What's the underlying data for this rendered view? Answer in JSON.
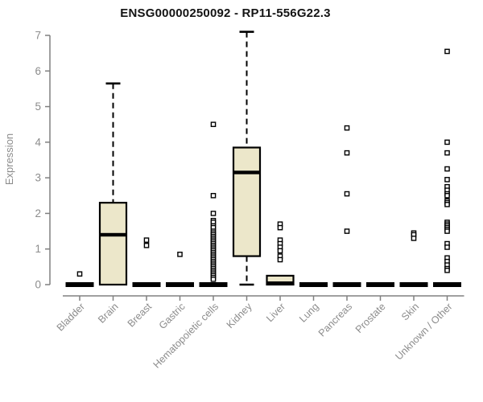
{
  "figure": {
    "title": "ENSG00000250092 - RP11-556G22.3",
    "ylabel": "Expression"
  },
  "chart_data": {
    "type": "boxplot",
    "title": "ENSG00000250092 - RP11-556G22.3",
    "xlabel": "",
    "ylabel": "Expression",
    "ylim": [
      0,
      7.2
    ],
    "yticks": [
      0,
      1,
      2,
      3,
      4,
      5,
      6,
      7
    ],
    "grid": false,
    "legend": false,
    "categories": [
      "Bladder",
      "Brain",
      "Breast",
      "Gastric",
      "Hematopoietic cells",
      "Kidney",
      "Liver",
      "Lung",
      "Pancreas",
      "Prostate",
      "Skin",
      "Unknown / Other"
    ],
    "series": [
      {
        "name": "Bladder",
        "q1": 0,
        "median": 0,
        "q3": 0,
        "whisker_low": 0,
        "whisker_high": 0,
        "outliers": [
          0.3
        ]
      },
      {
        "name": "Brain",
        "q1": 0,
        "median": 1.4,
        "q3": 2.3,
        "whisker_low": 0,
        "whisker_high": 5.65,
        "outliers": []
      },
      {
        "name": "Breast",
        "q1": 0,
        "median": 0,
        "q3": 0,
        "whisker_low": 0,
        "whisker_high": 0,
        "outliers": [
          1.25,
          1.1
        ]
      },
      {
        "name": "Gastric",
        "q1": 0,
        "median": 0,
        "q3": 0,
        "whisker_low": 0,
        "whisker_high": 0,
        "outliers": [
          0.85
        ]
      },
      {
        "name": "Hematopoietic cells",
        "q1": 0,
        "median": 0,
        "q3": 0,
        "whisker_low": 0,
        "whisker_high": 0,
        "outliers": [
          4.5,
          2.5,
          2.0,
          1.8,
          1.75,
          1.65,
          1.6,
          1.5,
          1.45,
          1.4,
          1.35,
          1.3,
          1.25,
          1.2,
          1.15,
          1.1,
          1.05,
          1.0,
          0.95,
          0.9,
          0.85,
          0.8,
          0.75,
          0.7,
          0.65,
          0.6,
          0.55,
          0.5,
          0.45,
          0.4,
          0.35,
          0.3,
          0.25,
          0.2,
          0.15
        ]
      },
      {
        "name": "Kidney",
        "q1": 0.8,
        "median": 3.15,
        "q3": 3.85,
        "whisker_low": 0,
        "whisker_high": 7.1,
        "outliers": []
      },
      {
        "name": "Liver",
        "q1": 0,
        "median": 0.04,
        "q3": 0.25,
        "whisker_low": 0,
        "whisker_high": 0.25,
        "outliers": [
          1.7,
          1.6,
          1.25,
          1.15,
          1.05,
          0.95,
          0.8,
          0.7
        ]
      },
      {
        "name": "Lung",
        "q1": 0,
        "median": 0,
        "q3": 0,
        "whisker_low": 0,
        "whisker_high": 0,
        "outliers": []
      },
      {
        "name": "Pancreas",
        "q1": 0,
        "median": 0,
        "q3": 0,
        "whisker_low": 0,
        "whisker_high": 0,
        "outliers": [
          4.4,
          3.7,
          2.55,
          1.5
        ]
      },
      {
        "name": "Prostate",
        "q1": 0,
        "median": 0,
        "q3": 0,
        "whisker_low": 0,
        "whisker_high": 0,
        "outliers": []
      },
      {
        "name": "Skin",
        "q1": 0,
        "median": 0,
        "q3": 0,
        "whisker_low": 0,
        "whisker_high": 0,
        "outliers": [
          1.45,
          1.4,
          1.3
        ]
      },
      {
        "name": "Unknown / Other",
        "q1": 0,
        "median": 0,
        "q3": 0,
        "whisker_low": 0,
        "whisker_high": 0,
        "outliers": [
          6.55,
          4.0,
          3.7,
          3.25,
          2.95,
          2.75,
          2.65,
          2.55,
          2.5,
          2.35,
          2.3,
          2.25,
          1.75,
          1.7,
          1.65,
          1.6,
          1.55,
          1.5,
          1.15,
          1.05,
          0.75,
          0.65,
          0.55,
          0.45,
          0.4
        ]
      }
    ],
    "colors": {
      "box_fill": "#ECE7CA",
      "box_stroke": "#000000",
      "median": "#000000",
      "whisker": "#000000",
      "outlier_stroke": "#000000",
      "outlier_fill": "#FFFFFF",
      "axis": "#808080",
      "tick_label": "#8C8C8C",
      "title": "#141414",
      "background": "#FFFFFF"
    }
  }
}
